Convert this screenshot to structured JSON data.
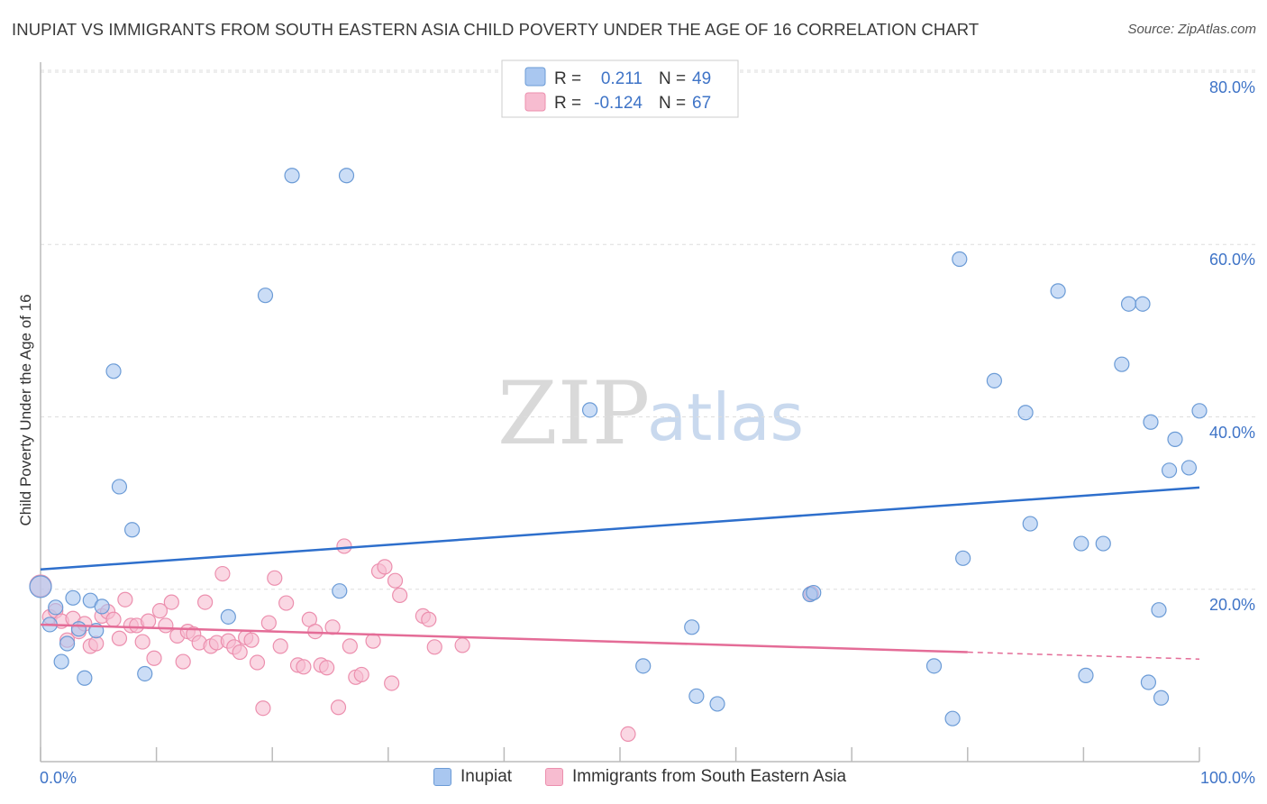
{
  "chart_data": {
    "type": "scatter",
    "title": "INUPIAT VS IMMIGRANTS FROM SOUTH EASTERN ASIA CHILD POVERTY UNDER THE AGE OF 16 CORRELATION CHART",
    "source": "Source: ZipAtlas.com",
    "xlabel": "",
    "ylabel": "Child Poverty Under the Age of 16",
    "xlim": [
      0,
      100
    ],
    "ylim": [
      0,
      80
    ],
    "x_tick_labels": [
      "0.0%",
      "100.0%"
    ],
    "y_ticks": [
      20,
      40,
      60,
      80
    ],
    "y_tick_labels": [
      "20.0%",
      "40.0%",
      "60.0%",
      "80.0%"
    ],
    "legend": {
      "series1": {
        "r_label": "R =",
        "r_value": "0.211",
        "n_label": "N =",
        "n_value": "49"
      },
      "series2": {
        "r_label": "R =",
        "r_value": "-0.124",
        "n_label": "N =",
        "n_value": "67"
      }
    },
    "series": [
      {
        "name": "Inupiat",
        "fill": "#a9c7f0",
        "stroke": "#6b9bd6",
        "line_color": "#2e6fcc",
        "trend": {
          "x0": 0,
          "y0": 22.3,
          "x1": 100,
          "y1": 31.8
        },
        "points": [
          [
            0,
            20.3
          ],
          [
            0.8,
            15.9
          ],
          [
            1.3,
            17.9
          ],
          [
            1.8,
            11.6
          ],
          [
            2.3,
            13.7
          ],
          [
            2.8,
            19.0
          ],
          [
            3.3,
            15.4
          ],
          [
            3.8,
            9.7
          ],
          [
            4.3,
            18.7
          ],
          [
            4.8,
            15.2
          ],
          [
            5.3,
            18.0
          ],
          [
            6.3,
            45.3
          ],
          [
            6.8,
            31.9
          ],
          [
            7.9,
            26.9
          ],
          [
            9.0,
            10.2
          ],
          [
            16.2,
            16.8
          ],
          [
            19.4,
            54.1
          ],
          [
            21.7,
            68.0
          ],
          [
            26.4,
            68.0
          ],
          [
            25.8,
            19.8
          ],
          [
            47.4,
            40.8
          ],
          [
            52.0,
            11.1
          ],
          [
            56.2,
            15.6
          ],
          [
            56.6,
            7.6
          ],
          [
            58.4,
            6.7
          ],
          [
            66.4,
            19.4
          ],
          [
            66.7,
            19.6
          ],
          [
            77.1,
            11.1
          ],
          [
            78.7,
            5.0
          ],
          [
            79.6,
            23.6
          ],
          [
            79.3,
            58.3
          ],
          [
            82.3,
            44.2
          ],
          [
            85.0,
            40.5
          ],
          [
            85.4,
            27.6
          ],
          [
            87.8,
            54.6
          ],
          [
            89.8,
            25.3
          ],
          [
            90.2,
            10.0
          ],
          [
            91.7,
            25.3
          ],
          [
            93.3,
            46.1
          ],
          [
            93.9,
            53.1
          ],
          [
            95.1,
            53.1
          ],
          [
            95.6,
            9.2
          ],
          [
            95.8,
            39.4
          ],
          [
            96.5,
            17.6
          ],
          [
            96.7,
            7.4
          ],
          [
            97.4,
            33.8
          ],
          [
            97.9,
            37.4
          ],
          [
            99.1,
            34.1
          ],
          [
            100,
            40.7
          ]
        ]
      },
      {
        "name": "Immigrants from South Eastern Asia",
        "fill": "#f7bcd0",
        "stroke": "#ec8fae",
        "line_color": "#e46c97",
        "trend": {
          "x0": 0,
          "y0": 15.9,
          "x1": 80,
          "y1": 12.7,
          "dash_x1": 100,
          "dash_y1": 11.9
        },
        "points": [
          [
            0,
            20.4
          ],
          [
            0.8,
            16.8
          ],
          [
            1.3,
            17.5
          ],
          [
            1.8,
            16.3
          ],
          [
            2.3,
            14.1
          ],
          [
            2.8,
            16.6
          ],
          [
            3.3,
            15.1
          ],
          [
            3.8,
            16.0
          ],
          [
            4.3,
            13.4
          ],
          [
            4.8,
            13.7
          ],
          [
            5.3,
            16.9
          ],
          [
            5.8,
            17.4
          ],
          [
            6.3,
            16.5
          ],
          [
            6.8,
            14.3
          ],
          [
            7.3,
            18.8
          ],
          [
            7.8,
            15.8
          ],
          [
            8.3,
            15.8
          ],
          [
            8.8,
            13.9
          ],
          [
            9.3,
            16.3
          ],
          [
            9.8,
            12.0
          ],
          [
            10.3,
            17.5
          ],
          [
            10.8,
            15.8
          ],
          [
            11.3,
            18.5
          ],
          [
            11.8,
            14.6
          ],
          [
            12.3,
            11.6
          ],
          [
            12.7,
            15.1
          ],
          [
            13.2,
            14.8
          ],
          [
            13.7,
            13.8
          ],
          [
            14.2,
            18.5
          ],
          [
            14.7,
            13.4
          ],
          [
            15.2,
            13.8
          ],
          [
            15.7,
            21.8
          ],
          [
            16.2,
            14.0
          ],
          [
            16.7,
            13.3
          ],
          [
            17.2,
            12.7
          ],
          [
            17.7,
            14.4
          ],
          [
            18.2,
            14.1
          ],
          [
            18.7,
            11.5
          ],
          [
            19.2,
            6.2
          ],
          [
            19.7,
            16.1
          ],
          [
            20.2,
            21.3
          ],
          [
            20.7,
            13.4
          ],
          [
            21.2,
            18.4
          ],
          [
            22.2,
            11.2
          ],
          [
            22.7,
            11.0
          ],
          [
            23.2,
            16.5
          ],
          [
            23.7,
            15.1
          ],
          [
            24.2,
            11.2
          ],
          [
            24.7,
            10.9
          ],
          [
            25.2,
            15.6
          ],
          [
            25.7,
            6.3
          ],
          [
            26.2,
            25.0
          ],
          [
            26.7,
            13.4
          ],
          [
            27.2,
            9.8
          ],
          [
            27.7,
            10.1
          ],
          [
            28.7,
            14.0
          ],
          [
            29.2,
            22.1
          ],
          [
            29.7,
            22.6
          ],
          [
            30.3,
            9.1
          ],
          [
            30.6,
            21.0
          ],
          [
            31.0,
            19.3
          ],
          [
            33.0,
            16.9
          ],
          [
            33.5,
            16.5
          ],
          [
            34.0,
            13.3
          ],
          [
            36.4,
            13.5
          ],
          [
            50.7,
            3.2
          ],
          [
            66.5,
            19.5
          ]
        ]
      }
    ],
    "watermark": {
      "zip": "ZIP",
      "atlas": "atlas"
    }
  }
}
